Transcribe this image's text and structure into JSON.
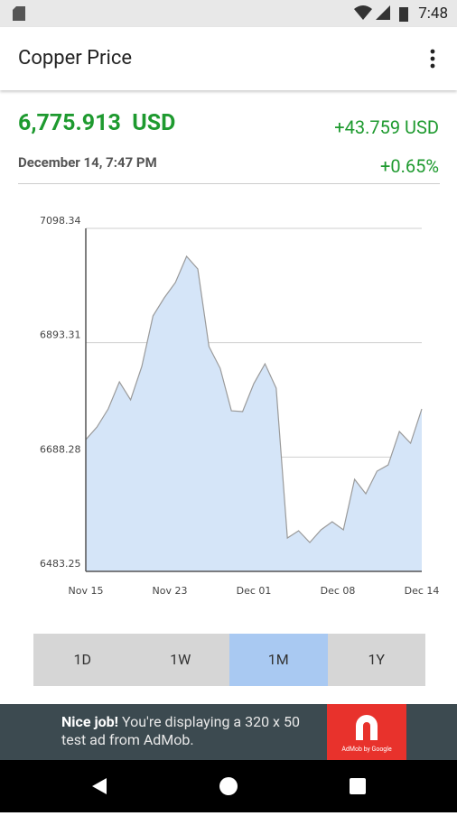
{
  "status_bar": {
    "time": "7:48"
  },
  "app_bar": {
    "title": "Copper Price"
  },
  "quote": {
    "price": "6,775.913",
    "currency": "USD",
    "change": "+43.759 USD",
    "timestamp": "December 14, 7:47 PM",
    "change_percent": "+0.65%"
  },
  "chart_data": {
    "type": "area",
    "color": "#d5e5f8",
    "line_color": "#9a9a9a",
    "x_tick_labels": [
      "Nov 15",
      "Nov 23",
      "Dec 01",
      "Dec 08",
      "Dec 14"
    ],
    "values": [
      6719.5,
      6742.2,
      6774.6,
      6823.1,
      6790.8,
      6850.7,
      6941.3,
      6973.7,
      7001.2,
      7048.1,
      7025.5,
      6886.3,
      6847.4,
      6771.3,
      6769.7,
      6819.9,
      6855.5,
      6811.8,
      6543.1,
      6556.1,
      6535.0,
      6557.7,
      6572.2,
      6557.7,
      6648.3,
      6622.4,
      6662.9,
      6674.2,
      6734.1,
      6713.1,
      6774.6
    ],
    "ylim": [
      6483.25,
      7098.34
    ],
    "yticks": [
      6483.25,
      6688.28,
      6893.31,
      7098.34
    ],
    "grid": true
  },
  "range_tabs": {
    "items": [
      "1D",
      "1W",
      "1M",
      "1Y"
    ],
    "selected": 2
  },
  "ad": {
    "headline": "Nice job!",
    "line1": " You're displaying a 320 x 50",
    "line2": "test ad from AdMob.",
    "logo_text": "AdMob by Google"
  }
}
